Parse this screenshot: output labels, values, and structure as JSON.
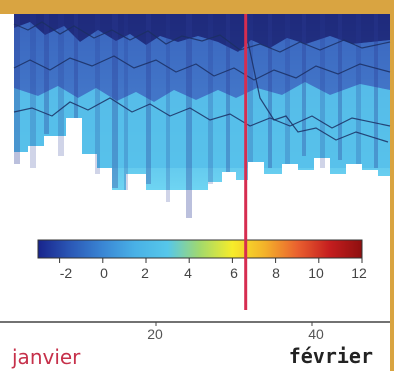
{
  "chart_data": {
    "type": "heatmap",
    "title": "",
    "xlabel": "",
    "ylabel": "",
    "xlim": [
      0,
      50
    ],
    "x_ticks": [
      20,
      40
    ],
    "months": [
      "janvier",
      "février"
    ],
    "marker_x": 31.5,
    "colorbar": {
      "ticks": [
        -2,
        0,
        2,
        4,
        6,
        8,
        10,
        12
      ],
      "range": [
        -3,
        12
      ],
      "colors": [
        "#18248c",
        "#2b58b6",
        "#3a86d4",
        "#49b1e6",
        "#56c7ea",
        "#a2d96c",
        "#f6ec2a",
        "#f3b22a",
        "#ea612f",
        "#c51e1f",
        "#8e0f0f"
      ]
    },
    "colors": {
      "accent": "#d9a441",
      "marker": "#d62d50",
      "axis": "#444444"
    }
  },
  "labels": {
    "left_month": "janvier",
    "right_month": "février",
    "x_tick_20": "20",
    "x_tick_40": "40",
    "scale_m2": "-2",
    "scale_0": "0",
    "scale_2": "2",
    "scale_4": "4",
    "scale_6": "6",
    "scale_8": "8",
    "scale_10": "10",
    "scale_12": "12"
  }
}
